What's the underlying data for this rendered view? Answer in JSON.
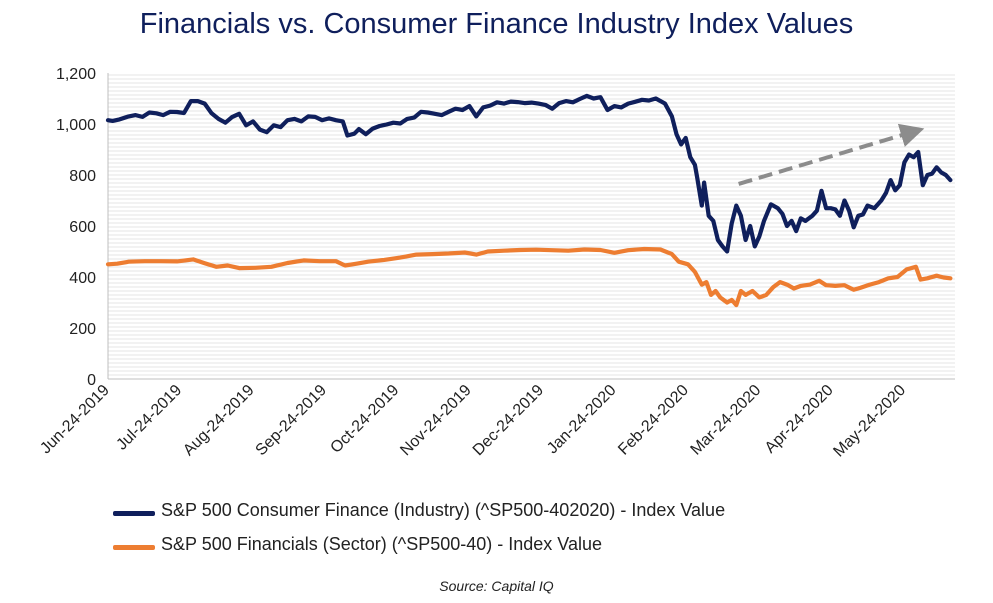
{
  "chart_data": {
    "type": "line",
    "title": "Financials vs. Consumer Finance Industry Index Values",
    "xlabel": "",
    "ylabel": "",
    "ylim": [
      0,
      1200
    ],
    "yticks": [
      "0",
      "200",
      "400",
      "600",
      "800",
      "1,000",
      "1,200"
    ],
    "grid": true,
    "legend_position": "bottom",
    "xticks": [
      "Jun-24-2019",
      "Jul-24-2019",
      "Aug-24-2019",
      "Sep-24-2019",
      "Oct-24-2019",
      "Nov-24-2019",
      "Dec-24-2019",
      "Jan-24-2020",
      "Feb-24-2020",
      "Mar-24-2020",
      "Apr-24-2020",
      "May-24-2020"
    ],
    "x_range": [
      "2019-06-24",
      "2020-06-26"
    ],
    "annotations": [
      {
        "type": "dashed-arrow",
        "color": "#8c8c8c",
        "from": [
          "2020-03-24",
          765
        ],
        "to": [
          "2020-06-08",
          970
        ]
      }
    ],
    "series": [
      {
        "name": "S&P 500 Consumer Finance (Industry) (^SP500-402020) - Index Value",
        "color": "#0f1f5c",
        "points": [
          [
            "2019-06-24",
            1015
          ],
          [
            "2019-06-26",
            1012
          ],
          [
            "2019-06-29",
            1018
          ],
          [
            "2019-07-03",
            1030
          ],
          [
            "2019-07-06",
            1035
          ],
          [
            "2019-07-09",
            1028
          ],
          [
            "2019-07-12",
            1045
          ],
          [
            "2019-07-15",
            1042
          ],
          [
            "2019-07-18",
            1035
          ],
          [
            "2019-07-21",
            1048
          ],
          [
            "2019-07-24",
            1047
          ],
          [
            "2019-07-27",
            1043
          ],
          [
            "2019-07-30",
            1090
          ],
          [
            "2019-08-02",
            1090
          ],
          [
            "2019-08-05",
            1080
          ],
          [
            "2019-08-08",
            1042
          ],
          [
            "2019-08-11",
            1020
          ],
          [
            "2019-08-14",
            1005
          ],
          [
            "2019-08-17",
            1028
          ],
          [
            "2019-08-20",
            1040
          ],
          [
            "2019-08-23",
            995
          ],
          [
            "2019-08-26",
            1010
          ],
          [
            "2019-08-29",
            978
          ],
          [
            "2019-09-01",
            968
          ],
          [
            "2019-09-04",
            995
          ],
          [
            "2019-09-07",
            988
          ],
          [
            "2019-09-10",
            1015
          ],
          [
            "2019-09-13",
            1020
          ],
          [
            "2019-09-16",
            1010
          ],
          [
            "2019-09-19",
            1030
          ],
          [
            "2019-09-22",
            1028
          ],
          [
            "2019-09-25",
            1015
          ],
          [
            "2019-09-28",
            1022
          ],
          [
            "2019-10-01",
            1015
          ],
          [
            "2019-10-04",
            1010
          ],
          [
            "2019-10-06",
            955
          ],
          [
            "2019-10-09",
            962
          ],
          [
            "2019-10-11",
            980
          ],
          [
            "2019-10-14",
            960
          ],
          [
            "2019-10-17",
            982
          ],
          [
            "2019-10-20",
            992
          ],
          [
            "2019-10-23",
            998
          ],
          [
            "2019-10-26",
            1005
          ],
          [
            "2019-10-29",
            1002
          ],
          [
            "2019-11-01",
            1020
          ],
          [
            "2019-11-04",
            1025
          ],
          [
            "2019-11-07",
            1048
          ],
          [
            "2019-11-10",
            1045
          ],
          [
            "2019-11-13",
            1040
          ],
          [
            "2019-11-16",
            1035
          ],
          [
            "2019-11-19",
            1048
          ],
          [
            "2019-11-22",
            1060
          ],
          [
            "2019-11-25",
            1055
          ],
          [
            "2019-11-28",
            1070
          ],
          [
            "2019-12-01",
            1030
          ],
          [
            "2019-12-04",
            1065
          ],
          [
            "2019-12-07",
            1072
          ],
          [
            "2019-12-10",
            1085
          ],
          [
            "2019-12-13",
            1080
          ],
          [
            "2019-12-16",
            1088
          ],
          [
            "2019-12-19",
            1086
          ],
          [
            "2019-12-22",
            1082
          ],
          [
            "2019-12-25",
            1084
          ],
          [
            "2019-12-28",
            1080
          ],
          [
            "2019-12-31",
            1075
          ],
          [
            "2020-01-03",
            1060
          ],
          [
            "2020-01-06",
            1082
          ],
          [
            "2020-01-09",
            1090
          ],
          [
            "2020-01-12",
            1085
          ],
          [
            "2020-01-15",
            1098
          ],
          [
            "2020-01-18",
            1110
          ],
          [
            "2020-01-21",
            1100
          ],
          [
            "2020-01-24",
            1105
          ],
          [
            "2020-01-27",
            1055
          ],
          [
            "2020-01-30",
            1070
          ],
          [
            "2020-02-02",
            1065
          ],
          [
            "2020-02-05",
            1080
          ],
          [
            "2020-02-08",
            1087
          ],
          [
            "2020-02-11",
            1095
          ],
          [
            "2020-02-14",
            1092
          ],
          [
            "2020-02-17",
            1100
          ],
          [
            "2020-02-21",
            1080
          ],
          [
            "2020-02-24",
            1030
          ],
          [
            "2020-02-26",
            960
          ],
          [
            "2020-02-28",
            920
          ],
          [
            "2020-03-01",
            945
          ],
          [
            "2020-03-03",
            870
          ],
          [
            "2020-03-05",
            840
          ],
          [
            "2020-03-06",
            790
          ],
          [
            "2020-03-08",
            680
          ],
          [
            "2020-03-09",
            770
          ],
          [
            "2020-03-11",
            640
          ],
          [
            "2020-03-13",
            620
          ],
          [
            "2020-03-15",
            545
          ],
          [
            "2020-03-17",
            520
          ],
          [
            "2020-03-19",
            500
          ],
          [
            "2020-03-21",
            610
          ],
          [
            "2020-03-23",
            680
          ],
          [
            "2020-03-25",
            640
          ],
          [
            "2020-03-27",
            545
          ],
          [
            "2020-03-29",
            600
          ],
          [
            "2020-03-31",
            520
          ],
          [
            "2020-04-02",
            560
          ],
          [
            "2020-04-04",
            620
          ],
          [
            "2020-04-07",
            685
          ],
          [
            "2020-04-10",
            670
          ],
          [
            "2020-04-12",
            648
          ],
          [
            "2020-04-14",
            600
          ],
          [
            "2020-04-16",
            620
          ],
          [
            "2020-04-18",
            580
          ],
          [
            "2020-04-20",
            630
          ],
          [
            "2020-04-22",
            620
          ],
          [
            "2020-04-25",
            640
          ],
          [
            "2020-04-27",
            660
          ],
          [
            "2020-04-29",
            738
          ],
          [
            "2020-05-01",
            670
          ],
          [
            "2020-05-03",
            670
          ],
          [
            "2020-05-05",
            665
          ],
          [
            "2020-05-07",
            640
          ],
          [
            "2020-05-09",
            700
          ],
          [
            "2020-05-11",
            660
          ],
          [
            "2020-05-13",
            595
          ],
          [
            "2020-05-15",
            640
          ],
          [
            "2020-05-17",
            645
          ],
          [
            "2020-05-19",
            680
          ],
          [
            "2020-05-22",
            670
          ],
          [
            "2020-05-25",
            700
          ],
          [
            "2020-05-27",
            730
          ],
          [
            "2020-05-29",
            780
          ],
          [
            "2020-05-31",
            740
          ],
          [
            "2020-06-02",
            760
          ],
          [
            "2020-06-04",
            850
          ],
          [
            "2020-06-06",
            880
          ],
          [
            "2020-06-08",
            870
          ],
          [
            "2020-06-10",
            890
          ],
          [
            "2020-06-12",
            760
          ],
          [
            "2020-06-14",
            800
          ],
          [
            "2020-06-16",
            805
          ],
          [
            "2020-06-18",
            830
          ],
          [
            "2020-06-20",
            810
          ],
          [
            "2020-06-22",
            800
          ],
          [
            "2020-06-24",
            780
          ]
        ]
      },
      {
        "name": "S&P 500 Financials (Sector) (^SP500-40) - Index Value",
        "color": "#ed7d31",
        "points": [
          [
            "2019-06-24",
            450
          ],
          [
            "2019-06-28",
            452
          ],
          [
            "2019-07-03",
            460
          ],
          [
            "2019-07-10",
            462
          ],
          [
            "2019-07-17",
            462
          ],
          [
            "2019-07-24",
            461
          ],
          [
            "2019-07-31",
            469
          ],
          [
            "2019-08-05",
            454
          ],
          [
            "2019-08-10",
            440
          ],
          [
            "2019-08-15",
            445
          ],
          [
            "2019-08-20",
            435
          ],
          [
            "2019-08-27",
            436
          ],
          [
            "2019-09-03",
            440
          ],
          [
            "2019-09-10",
            455
          ],
          [
            "2019-09-17",
            465
          ],
          [
            "2019-09-24",
            462
          ],
          [
            "2019-10-01",
            462
          ],
          [
            "2019-10-05",
            445
          ],
          [
            "2019-10-10",
            452
          ],
          [
            "2019-10-15",
            460
          ],
          [
            "2019-10-22",
            467
          ],
          [
            "2019-10-29",
            476
          ],
          [
            "2019-11-05",
            488
          ],
          [
            "2019-11-12",
            490
          ],
          [
            "2019-11-19",
            492
          ],
          [
            "2019-11-26",
            496
          ],
          [
            "2019-12-01",
            488
          ],
          [
            "2019-12-06",
            500
          ],
          [
            "2019-12-13",
            503
          ],
          [
            "2019-12-20",
            506
          ],
          [
            "2019-12-27",
            507
          ],
          [
            "2020-01-03",
            505
          ],
          [
            "2020-01-10",
            503
          ],
          [
            "2020-01-17",
            508
          ],
          [
            "2020-01-24",
            506
          ],
          [
            "2020-01-30",
            495
          ],
          [
            "2020-02-05",
            505
          ],
          [
            "2020-02-12",
            510
          ],
          [
            "2020-02-19",
            508
          ],
          [
            "2020-02-24",
            490
          ],
          [
            "2020-02-27",
            460
          ],
          [
            "2020-03-02",
            450
          ],
          [
            "2020-03-05",
            420
          ],
          [
            "2020-03-08",
            370
          ],
          [
            "2020-03-10",
            380
          ],
          [
            "2020-03-12",
            330
          ],
          [
            "2020-03-14",
            345
          ],
          [
            "2020-03-16",
            320
          ],
          [
            "2020-03-19",
            300
          ],
          [
            "2020-03-21",
            310
          ],
          [
            "2020-03-23",
            290
          ],
          [
            "2020-03-25",
            345
          ],
          [
            "2020-03-27",
            330
          ],
          [
            "2020-03-30",
            345
          ],
          [
            "2020-04-02",
            320
          ],
          [
            "2020-04-05",
            330
          ],
          [
            "2020-04-08",
            360
          ],
          [
            "2020-04-11",
            380
          ],
          [
            "2020-04-14",
            370
          ],
          [
            "2020-04-17",
            355
          ],
          [
            "2020-04-20",
            365
          ],
          [
            "2020-04-24",
            370
          ],
          [
            "2020-04-28",
            385
          ],
          [
            "2020-05-01",
            368
          ],
          [
            "2020-05-05",
            365
          ],
          [
            "2020-05-09",
            368
          ],
          [
            "2020-05-13",
            350
          ],
          [
            "2020-05-16",
            358
          ],
          [
            "2020-05-20",
            370
          ],
          [
            "2020-05-24",
            380
          ],
          [
            "2020-05-28",
            395
          ],
          [
            "2020-06-01",
            400
          ],
          [
            "2020-06-05",
            430
          ],
          [
            "2020-06-09",
            440
          ],
          [
            "2020-06-11",
            390
          ],
          [
            "2020-06-14",
            395
          ],
          [
            "2020-06-18",
            405
          ],
          [
            "2020-06-21",
            398
          ],
          [
            "2020-06-24",
            395
          ]
        ]
      }
    ]
  },
  "source": "Source: Capital IQ"
}
